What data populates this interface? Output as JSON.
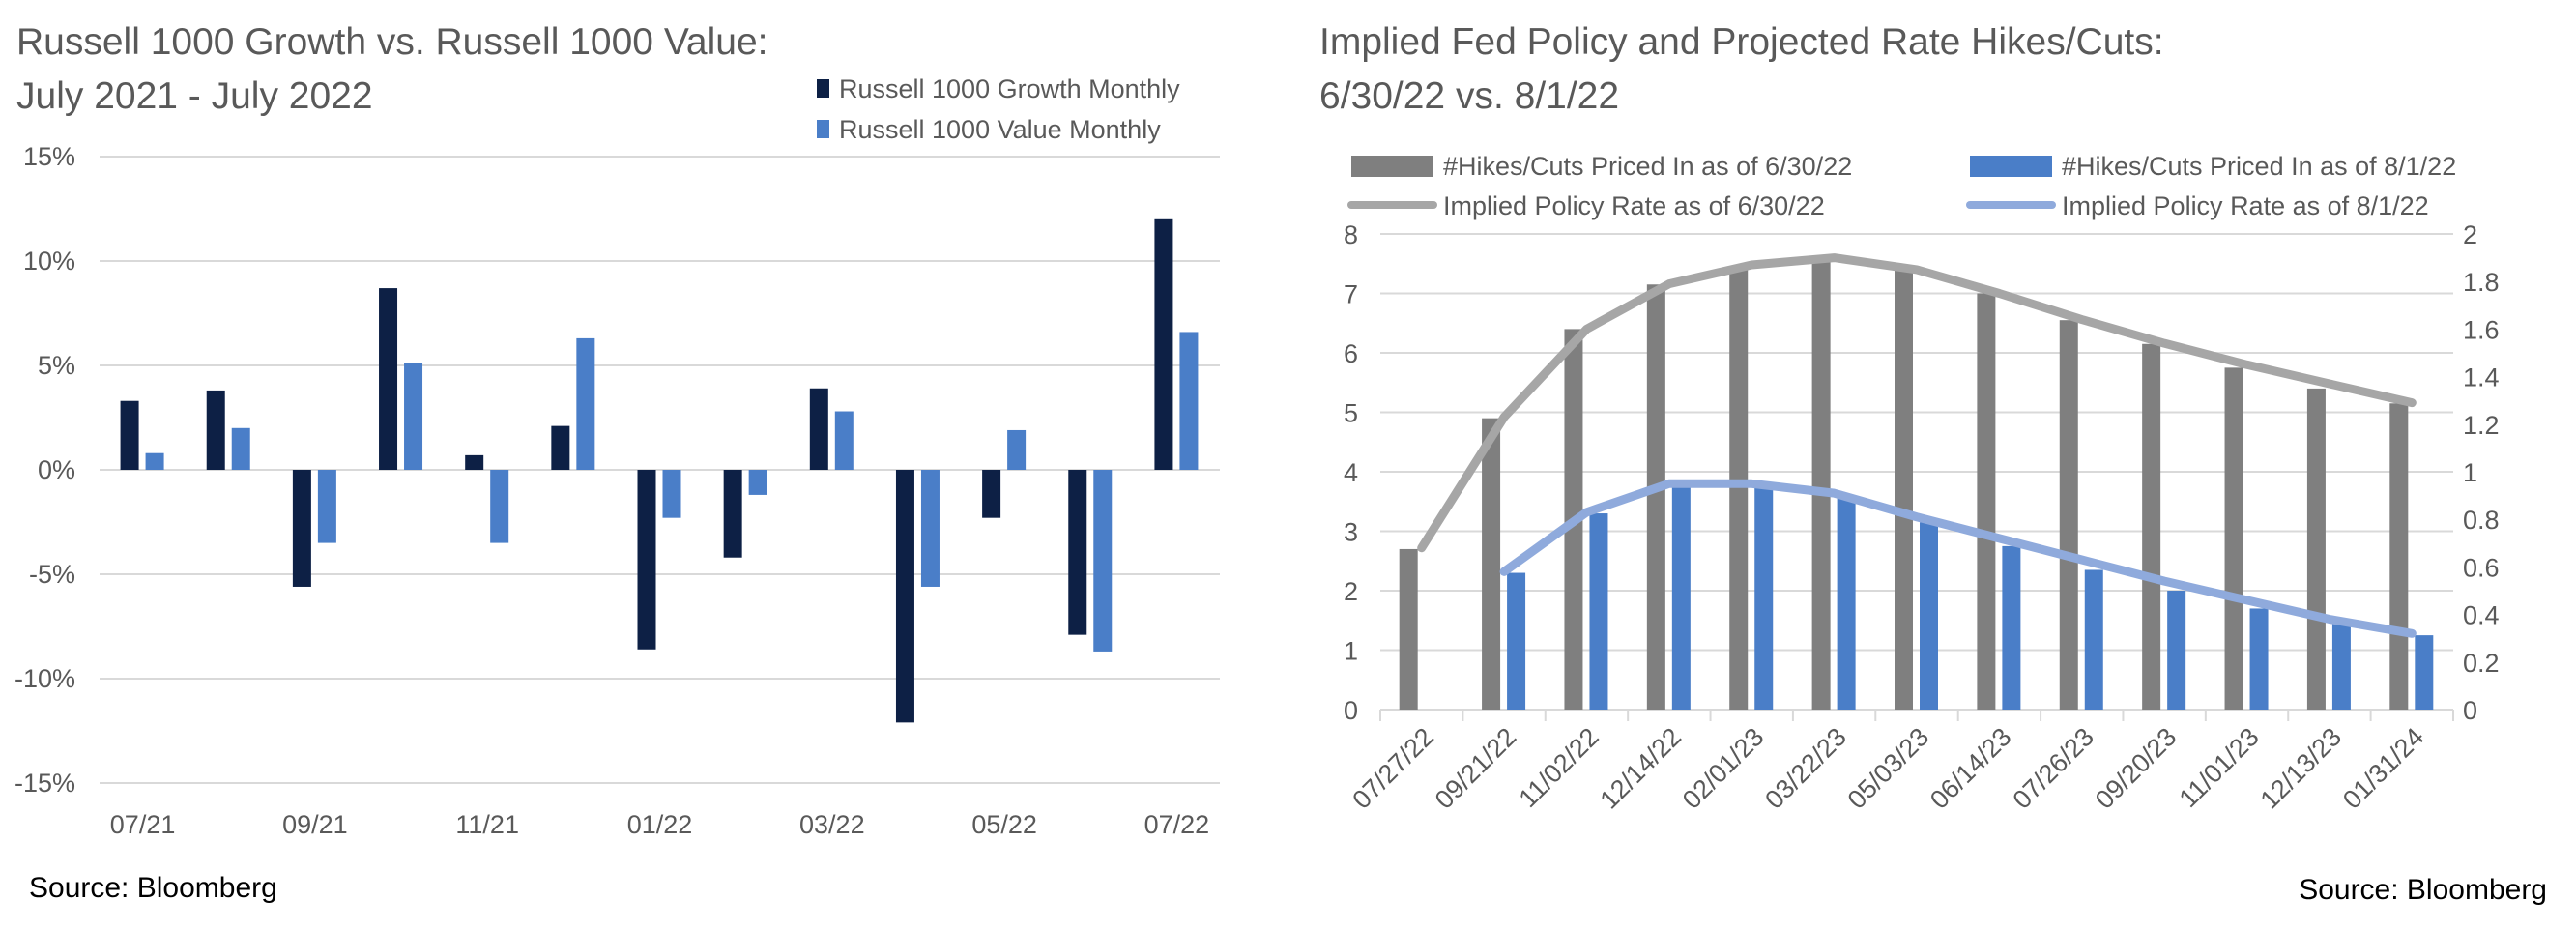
{
  "colors": {
    "growth": "#0d2045",
    "value": "#4a7ec8",
    "hikes_0630": "#7f7f7f",
    "hikes_0801": "#4a7ec8",
    "rate_0630": "#a6a6a6",
    "rate_0801": "#8faadc",
    "gridline": "#d9d9d9",
    "text": "#595959",
    "source_text": "#000000"
  },
  "left": {
    "title_line1": "Russell 1000 Growth vs. Russell 1000 Value:",
    "title_line2": "July 2021 - July 2022",
    "source": "Source: Bloomberg"
  },
  "right": {
    "title_line1": "Implied Fed Policy and Projected Rate Hikes/Cuts:",
    "title_line2": "6/30/22 vs. 8/1/22",
    "source": "Source: Bloomberg"
  },
  "chart_data": [
    {
      "type": "bar",
      "title": "Russell 1000 Growth vs. Russell 1000 Value: July 2021 - July 2022",
      "categories": [
        "07/21",
        "08/21",
        "09/21",
        "10/21",
        "11/21",
        "12/21",
        "01/22",
        "02/22",
        "03/22",
        "04/22",
        "05/22",
        "06/22",
        "07/22"
      ],
      "tick_labels": [
        "07/21",
        "",
        "09/21",
        "",
        "11/21",
        "",
        "01/22",
        "",
        "03/22",
        "",
        "05/22",
        "",
        "07/22"
      ],
      "series": [
        {
          "name": "Russell 1000 Growth Monthly",
          "values": [
            3.3,
            3.8,
            -5.6,
            8.7,
            0.7,
            2.1,
            -8.6,
            -4.2,
            3.9,
            -12.1,
            -2.3,
            -7.9,
            12.0
          ]
        },
        {
          "name": "Russell 1000 Value Monthly",
          "values": [
            0.8,
            2.0,
            -3.5,
            5.1,
            -3.5,
            6.3,
            -2.3,
            -1.2,
            2.8,
            -5.6,
            1.9,
            -8.7,
            6.6
          ]
        }
      ],
      "ylim": [
        -15,
        15
      ],
      "yticks": [
        15,
        10,
        5,
        0,
        -5,
        -10,
        -15
      ],
      "ytick_labels": [
        "15%",
        "10%",
        "5%",
        "0%",
        "-5%",
        "-10%",
        "-15%"
      ],
      "grid": true,
      "legend": "top-right"
    },
    {
      "type": "bar",
      "title": "Implied Fed Policy and Projected Rate Hikes/Cuts: 6/30/22 vs. 8/1/22",
      "categories": [
        "07/27/22",
        "09/21/22",
        "11/02/22",
        "12/14/22",
        "02/01/23",
        "03/22/23",
        "05/03/23",
        "06/14/23",
        "07/26/23",
        "09/20/23",
        "11/01/23",
        "12/13/23",
        "01/31/24"
      ],
      "series": [
        {
          "name": "#Hikes/Cuts Priced In as of 6/30/22",
          "kind": "bar",
          "axis": "left",
          "values": [
            2.7,
            4.9,
            6.4,
            7.15,
            7.45,
            7.6,
            7.4,
            7.0,
            6.55,
            6.15,
            5.75,
            5.4,
            5.15
          ]
        },
        {
          "name": "#Hikes/Cuts Priced In as of 8/1/22",
          "kind": "bar",
          "axis": "left",
          "values": [
            null,
            2.3,
            3.3,
            3.8,
            3.8,
            3.6,
            3.15,
            2.75,
            2.35,
            2.0,
            1.7,
            1.45,
            1.25
          ]
        },
        {
          "name": "Implied Policy Rate as of 6/30/22",
          "kind": "line",
          "axis": "right",
          "values": [
            0.68,
            1.23,
            1.6,
            1.79,
            1.87,
            1.9,
            1.85,
            1.75,
            1.64,
            1.54,
            1.45,
            1.37,
            1.29
          ]
        },
        {
          "name": "Implied Policy Rate as of 8/1/22",
          "kind": "line",
          "axis": "right",
          "values": [
            null,
            0.58,
            0.83,
            0.95,
            0.95,
            0.91,
            0.81,
            0.72,
            0.63,
            0.54,
            0.46,
            0.38,
            0.32
          ]
        }
      ],
      "ylim_left": [
        0,
        8
      ],
      "yticks_left": [
        "8",
        "7",
        "6",
        "5",
        "4",
        "3",
        "2",
        "1",
        "0"
      ],
      "ylim_right": [
        0,
        2
      ],
      "yticks_right": [
        "2",
        "1.8",
        "1.6",
        "1.4",
        "1.2",
        "1",
        "0.8",
        "0.6",
        "0.4",
        "0.2",
        "0"
      ],
      "grid": true,
      "legend": "top"
    }
  ]
}
